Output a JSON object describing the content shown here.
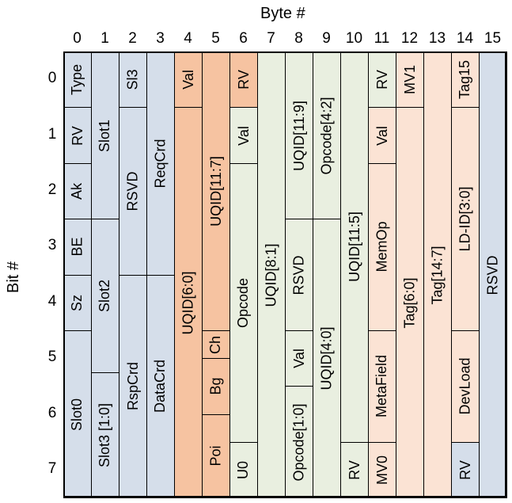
{
  "title_x": "Byte #",
  "title_y": "Bit #",
  "bytes": [
    "0",
    "1",
    "2",
    "3",
    "4",
    "5",
    "6",
    "7",
    "8",
    "9",
    "10",
    "11",
    "12",
    "13",
    "14",
    "15"
  ],
  "bits": [
    "0",
    "1",
    "2",
    "3",
    "4",
    "5",
    "6",
    "7"
  ],
  "colors": {
    "blue": "#d5deea",
    "orange": "#f6c3a1",
    "green": "#e9efe0",
    "peach": "#fbe3d4"
  },
  "fields": [
    {
      "label": "Type",
      "byte": 0,
      "bit0": 0,
      "bits": 1,
      "color": "blue"
    },
    {
      "label": "RV",
      "byte": 0,
      "bit0": 1,
      "bits": 1,
      "color": "blue"
    },
    {
      "label": "Ak",
      "byte": 0,
      "bit0": 2,
      "bits": 1,
      "color": "blue"
    },
    {
      "label": "BE",
      "byte": 0,
      "bit0": 3,
      "bits": 1,
      "color": "blue"
    },
    {
      "label": "Sz",
      "byte": 0,
      "bit0": 4,
      "bits": 1,
      "color": "blue"
    },
    {
      "label": "Slot0",
      "byte": 0,
      "bit0": 5,
      "bits": 3,
      "color": "blue"
    },
    {
      "label": "Slot1",
      "byte": 1,
      "bit0": 0,
      "bits": 3,
      "color": "blue"
    },
    {
      "label": "Slot2",
      "byte": 1,
      "bit0": 3,
      "bits": 2.75,
      "color": "blue"
    },
    {
      "label": "Slot3 [1:0]",
      "byte": 1,
      "bit0": 5.75,
      "bits": 2.25,
      "color": "blue"
    },
    {
      "label": "Sl3",
      "byte": 2,
      "bit0": 0,
      "bits": 1,
      "color": "blue"
    },
    {
      "label": "RSVD",
      "byte": 2,
      "bit0": 1,
      "bits": 3,
      "color": "blue"
    },
    {
      "label": "RspCrd",
      "byte": 2,
      "bit0": 4,
      "bits": 4,
      "color": "blue"
    },
    {
      "label": "ReqCrd",
      "byte": 3,
      "bit0": 0,
      "bits": 4,
      "color": "blue"
    },
    {
      "label": "DataCrd",
      "byte": 3,
      "bit0": 4,
      "bits": 4,
      "color": "blue"
    },
    {
      "label": "Val",
      "byte": 4,
      "bit0": 0,
      "bits": 1,
      "color": "orange"
    },
    {
      "label": "UQID[6:0]",
      "byte": 4,
      "bit0": 1,
      "bits": 7,
      "color": "orange"
    },
    {
      "label": "UQID[11:7]",
      "byte": 5,
      "bit0": 0,
      "bits": 5,
      "color": "orange"
    },
    {
      "label": "Ch",
      "byte": 5,
      "bit0": 5,
      "bits": 0.5,
      "color": "orange"
    },
    {
      "label": "Bg",
      "byte": 5,
      "bit0": 5.5,
      "bits": 1,
      "color": "orange"
    },
    {
      "label": "Poi",
      "byte": 5,
      "bit0": 6.5,
      "bits": 1.5,
      "color": "orange"
    },
    {
      "label": "RV",
      "byte": 6,
      "bit0": 0,
      "bits": 1,
      "color": "orange"
    },
    {
      "label": "Val",
      "byte": 6,
      "bit0": 1,
      "bits": 1,
      "color": "green"
    },
    {
      "label": "Opcode",
      "byte": 6,
      "bit0": 2,
      "bits": 5,
      "color": "green"
    },
    {
      "label": "U0",
      "byte": 6,
      "bit0": 7,
      "bits": 1,
      "color": "green"
    },
    {
      "label": "UQID[8:1]",
      "byte": 7,
      "bit0": 0,
      "bits": 8,
      "color": "green"
    },
    {
      "label": "UQID[11:9]",
      "byte": 8,
      "bit0": 0,
      "bits": 3,
      "color": "green"
    },
    {
      "label": "RSVD",
      "byte": 8,
      "bit0": 3,
      "bits": 2,
      "color": "green"
    },
    {
      "label": "Val",
      "byte": 8,
      "bit0": 5,
      "bits": 1,
      "color": "green"
    },
    {
      "label": "Opcode[1:0]",
      "byte": 8,
      "bit0": 6,
      "bits": 2,
      "color": "green"
    },
    {
      "label": "Opcode[4:2]",
      "byte": 9,
      "bit0": 0,
      "bits": 3,
      "color": "green"
    },
    {
      "label": "UQID[4:0]",
      "byte": 9,
      "bit0": 3,
      "bits": 5,
      "color": "green"
    },
    {
      "label": "UQID[11:5]",
      "byte": 10,
      "bit0": 0,
      "bits": 7,
      "color": "green"
    },
    {
      "label": "RV",
      "byte": 10,
      "bit0": 7,
      "bits": 1,
      "color": "green"
    },
    {
      "label": "RV",
      "byte": 11,
      "bit0": 0,
      "bits": 1,
      "color": "green"
    },
    {
      "label": "Val",
      "byte": 11,
      "bit0": 1,
      "bits": 1,
      "color": "peach"
    },
    {
      "label": "MemOp",
      "byte": 11,
      "bit0": 2,
      "bits": 3,
      "color": "peach"
    },
    {
      "label": "MetaField",
      "byte": 11,
      "bit0": 5,
      "bits": 2,
      "color": "peach"
    },
    {
      "label": "MV0",
      "byte": 11,
      "bit0": 7,
      "bits": 1,
      "color": "peach"
    },
    {
      "label": "MV1",
      "byte": 12,
      "bit0": 0,
      "bits": 1,
      "color": "peach"
    },
    {
      "label": "Tag[6:0]",
      "byte": 12,
      "bit0": 1,
      "bits": 7,
      "color": "peach"
    },
    {
      "label": "Tag[14:7]",
      "byte": 13,
      "bit0": 0,
      "bits": 8,
      "color": "peach"
    },
    {
      "label": "Tag15",
      "byte": 14,
      "bit0": 0,
      "bits": 1,
      "color": "peach"
    },
    {
      "label": "LD-ID[3:0]",
      "byte": 14,
      "bit0": 1,
      "bits": 4,
      "color": "peach"
    },
    {
      "label": "DevLoad",
      "byte": 14,
      "bit0": 5,
      "bits": 2,
      "color": "peach"
    },
    {
      "label": "RV",
      "byte": 14,
      "bit0": 7,
      "bits": 1,
      "color": "blue"
    },
    {
      "label": "RSVD",
      "byte": 15,
      "bit0": 0,
      "bits": 8,
      "color": "blue"
    }
  ]
}
